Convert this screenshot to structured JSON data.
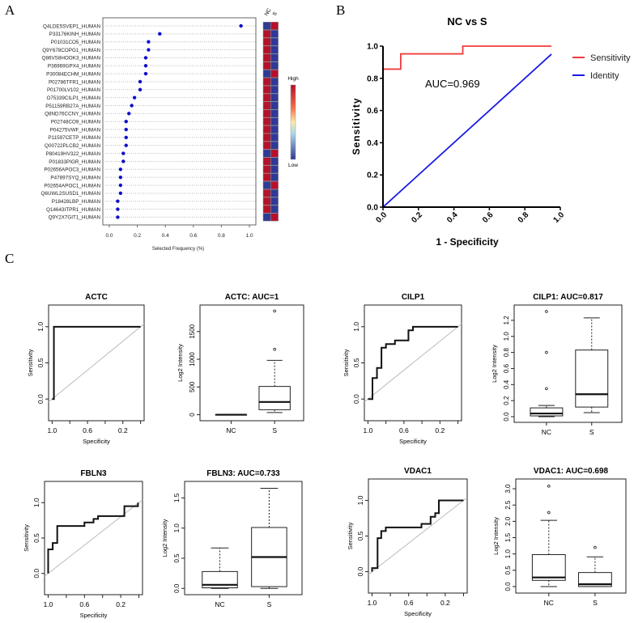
{
  "panel_labels": [
    "A",
    "B",
    "C"
  ],
  "chart_data": [
    {
      "id": "A",
      "type": "scatter",
      "xlabel": "Selected Frequency (%)",
      "xlim": [
        0,
        1
      ],
      "xticks": [
        "0.0",
        "0.2",
        "0.4",
        "0.6",
        "0.8",
        "1.0"
      ],
      "categories": [
        "Q4LDE5SVEP1_HUMAN",
        "P33176KINH_HUMAN",
        "P01031CO5_HUMAN",
        "Q9Y678COPG1_HUMAN",
        "Q86VS8HOOK3_HUMAN",
        "P36969GPX4_HUMAN",
        "P30084ECHM_HUMAN",
        "P02786TFR1_HUMAN",
        "P01700LV102_HUMAN",
        "O75339CILP1_HUMAN",
        "P51159RB27A_HUMAN",
        "Q8ND76CCNY_HUMAN",
        "P02748CO9_HUMAN",
        "P04275VWF_HUMAN",
        "P11597CETP_HUMAN",
        "Q00722PLCB2_HUMAN",
        "P80419HV322_HUMAN",
        "P01833PIGR_HUMAN",
        "P02656APOC3_HUMAN",
        "P47897SYQ_HUMAN",
        "P02654APOC1_HUMAN",
        "Q6UWL2SUSD1_HUMAN",
        "P18428LBP_HUMAN",
        "Q14643ITPR1_HUMAN",
        "Q9Y2X7GIT1_HUMAN"
      ],
      "values": [
        0.94,
        0.36,
        0.28,
        0.28,
        0.26,
        0.26,
        0.26,
        0.22,
        0.22,
        0.18,
        0.16,
        0.14,
        0.12,
        0.12,
        0.12,
        0.12,
        0.1,
        0.1,
        0.08,
        0.08,
        0.08,
        0.08,
        0.06,
        0.06,
        0.06
      ],
      "heatmap": {
        "columns": [
          "NC",
          "S"
        ],
        "nc_high": [
          0,
          1,
          1,
          1,
          1,
          1,
          0,
          1,
          1,
          1,
          1,
          1,
          1,
          1,
          1,
          1,
          0,
          1,
          1,
          1,
          0,
          1,
          1,
          1,
          0
        ],
        "legend_high": "High",
        "legend_low": "Low",
        "colors": {
          "high": "#b5112b",
          "mid": "#fde9a9",
          "low": "#2f3a96"
        }
      },
      "dot_color": "#1010cc"
    },
    {
      "id": "B",
      "type": "line",
      "title": "NC vs S",
      "xlabel": "1 - Specificity",
      "ylabel": "Sensitivity",
      "xlim": [
        0,
        1
      ],
      "ylim": [
        0,
        1
      ],
      "xticks": [
        "0.0",
        "0.2",
        "0.4",
        "0.6",
        "0.8",
        "1.0"
      ],
      "yticks": [
        "0.0",
        "0.2",
        "0.4",
        "0.6",
        "0.8",
        "1.0"
      ],
      "annotation": "AUC=0.969",
      "series": [
        {
          "name": "Sensitivity",
          "color": "#f03c3c",
          "points": [
            [
              0,
              0
            ],
            [
              0,
              0.857
            ],
            [
              0.1,
              0.857
            ],
            [
              0.1,
              0.952
            ],
            [
              0.45,
              0.952
            ],
            [
              0.45,
              1
            ],
            [
              0.95,
              1
            ]
          ]
        },
        {
          "name": "Identity",
          "color": "#1a1ae6",
          "points": [
            [
              0,
              0
            ],
            [
              0.95,
              0.95
            ]
          ]
        }
      ],
      "legend": "right"
    },
    {
      "id": "C",
      "rocs": [
        {
          "title": "ACTC",
          "xlabel": "Specificity",
          "ylabel": "Sensitivity",
          "xticks": [
            "1.0",
            "0.6",
            "0.2"
          ],
          "yticks": [
            "0.0",
            "0.5",
            "1.0"
          ],
          "points": [
            [
              1,
              0
            ],
            [
              0.98,
              0
            ],
            [
              0.98,
              1
            ],
            [
              0,
              1
            ]
          ]
        },
        {
          "title": "CILP1",
          "xlabel": "Specificity",
          "ylabel": "Sensitivity",
          "xticks": [
            "1.0",
            "0.6",
            "0.2"
          ],
          "yticks": [
            "0.0",
            "0.5",
            "1.0"
          ],
          "points": [
            [
              1,
              0
            ],
            [
              0.95,
              0
            ],
            [
              0.95,
              0.29
            ],
            [
              0.9,
              0.29
            ],
            [
              0.9,
              0.43
            ],
            [
              0.85,
              0.43
            ],
            [
              0.85,
              0.71
            ],
            [
              0.8,
              0.71
            ],
            [
              0.8,
              0.76
            ],
            [
              0.7,
              0.76
            ],
            [
              0.7,
              0.81
            ],
            [
              0.55,
              0.81
            ],
            [
              0.55,
              0.95
            ],
            [
              0.5,
              0.95
            ],
            [
              0.5,
              1
            ],
            [
              0,
              1
            ]
          ]
        },
        {
          "title": "FBLN3",
          "xlabel": "Specificity",
          "ylabel": "Sensitivity",
          "xticks": [
            "1.0",
            "0.6",
            "0.2"
          ],
          "yticks": [
            "0.0",
            "0.5",
            "1.0"
          ],
          "points": [
            [
              1,
              0
            ],
            [
              1,
              0.34
            ],
            [
              0.95,
              0.34
            ],
            [
              0.95,
              0.43
            ],
            [
              0.9,
              0.43
            ],
            [
              0.9,
              0.67
            ],
            [
              0.6,
              0.67
            ],
            [
              0.6,
              0.72
            ],
            [
              0.5,
              0.72
            ],
            [
              0.5,
              0.77
            ],
            [
              0.45,
              0.77
            ],
            [
              0.45,
              0.81
            ],
            [
              0.16,
              0.81
            ],
            [
              0.16,
              0.95
            ],
            [
              0.01,
              0.95
            ],
            [
              0.01,
              1
            ]
          ]
        },
        {
          "title": "VDAC1",
          "xlabel": "Specificity",
          "ylabel": "Sensitivity",
          "xticks": [
            "1.0",
            "0.6",
            "0.2"
          ],
          "yticks": [
            "0.0",
            "0.5",
            "1.0"
          ],
          "points": [
            [
              1,
              0
            ],
            [
              1,
              0.05
            ],
            [
              0.94,
              0.05
            ],
            [
              0.94,
              0.47
            ],
            [
              0.9,
              0.47
            ],
            [
              0.9,
              0.57
            ],
            [
              0.85,
              0.57
            ],
            [
              0.85,
              0.62
            ],
            [
              0.46,
              0.62
            ],
            [
              0.46,
              0.67
            ],
            [
              0.36,
              0.67
            ],
            [
              0.36,
              0.77
            ],
            [
              0.31,
              0.77
            ],
            [
              0.31,
              0.82
            ],
            [
              0.27,
              0.82
            ],
            [
              0.27,
              1
            ],
            [
              0,
              1
            ]
          ]
        }
      ],
      "boxplots": [
        {
          "title": "ACTC: AUC=1",
          "ylabel": "Log2 Intensity",
          "ylim": [
            -50,
            1920
          ],
          "yticks": [
            "0",
            "500",
            "1000",
            "1500"
          ],
          "ytick_values": [
            0,
            500,
            1000,
            1500
          ],
          "groups": [
            {
              "name": "NC",
              "min": 0,
              "q1": 0,
              "median": 0,
              "q3": 0,
              "max": 0,
              "outliers": []
            },
            {
              "name": "S",
              "min": 40,
              "q1": 90,
              "median": 230,
              "q3": 510,
              "max": 980,
              "outliers": [
                1180,
                1870
              ]
            }
          ]
        },
        {
          "title": "CILP1: AUC=0.817",
          "ylabel": "Log2 Intensity",
          "ylim": [
            -0.03,
            1.35
          ],
          "yticks": [
            "0.0",
            "0.2",
            "0.4",
            "0.6",
            "0.8",
            "1.0",
            "1.2"
          ],
          "ytick_values": [
            0,
            0.2,
            0.4,
            0.6,
            0.8,
            1.0,
            1.2
          ],
          "groups": [
            {
              "name": "NC",
              "min": 0,
              "q1": 0.01,
              "median": 0.04,
              "q3": 0.11,
              "max": 0.14,
              "outliers": [
                0.35,
                0.8,
                1.31
              ]
            },
            {
              "name": "S",
              "min": 0.05,
              "q1": 0.12,
              "median": 0.28,
              "q3": 0.83,
              "max": 1.23,
              "outliers": []
            }
          ]
        },
        {
          "title": "FBLN3: AUC=0.733",
          "ylabel": "Log2 Intensity",
          "ylim": [
            -0.05,
            1.72
          ],
          "yticks": [
            "0.0",
            "0.5",
            "1.0",
            "1.5"
          ],
          "ytick_values": [
            0,
            0.5,
            1.0,
            1.5
          ],
          "groups": [
            {
              "name": "NC",
              "min": 0,
              "q1": 0.01,
              "median": 0.06,
              "q3": 0.28,
              "max": 0.67,
              "outliers": []
            },
            {
              "name": "S",
              "min": 0,
              "q1": 0.03,
              "median": 0.52,
              "q3": 1.01,
              "max": 1.66,
              "outliers": []
            }
          ]
        },
        {
          "title": "VDAC1: AUC=0.698",
          "ylabel": "Log2 Intensity",
          "ylim": [
            -0.1,
            3.2
          ],
          "yticks": [
            "0.0",
            "0.5",
            "1.0",
            "1.5",
            "2.0",
            "2.5",
            "3.0"
          ],
          "ytick_values": [
            0,
            0.5,
            1.0,
            1.5,
            2.0,
            2.5,
            3.0
          ],
          "groups": [
            {
              "name": "NC",
              "min": 0,
              "q1": 0.19,
              "median": 0.28,
              "q3": 0.98,
              "max": 2.03,
              "outliers": [
                2.27,
                3.08
              ]
            },
            {
              "name": "S",
              "min": 0,
              "q1": 0,
              "median": 0.07,
              "q3": 0.43,
              "max": 0.91,
              "outliers": [
                1.2
              ]
            }
          ]
        }
      ]
    }
  ]
}
